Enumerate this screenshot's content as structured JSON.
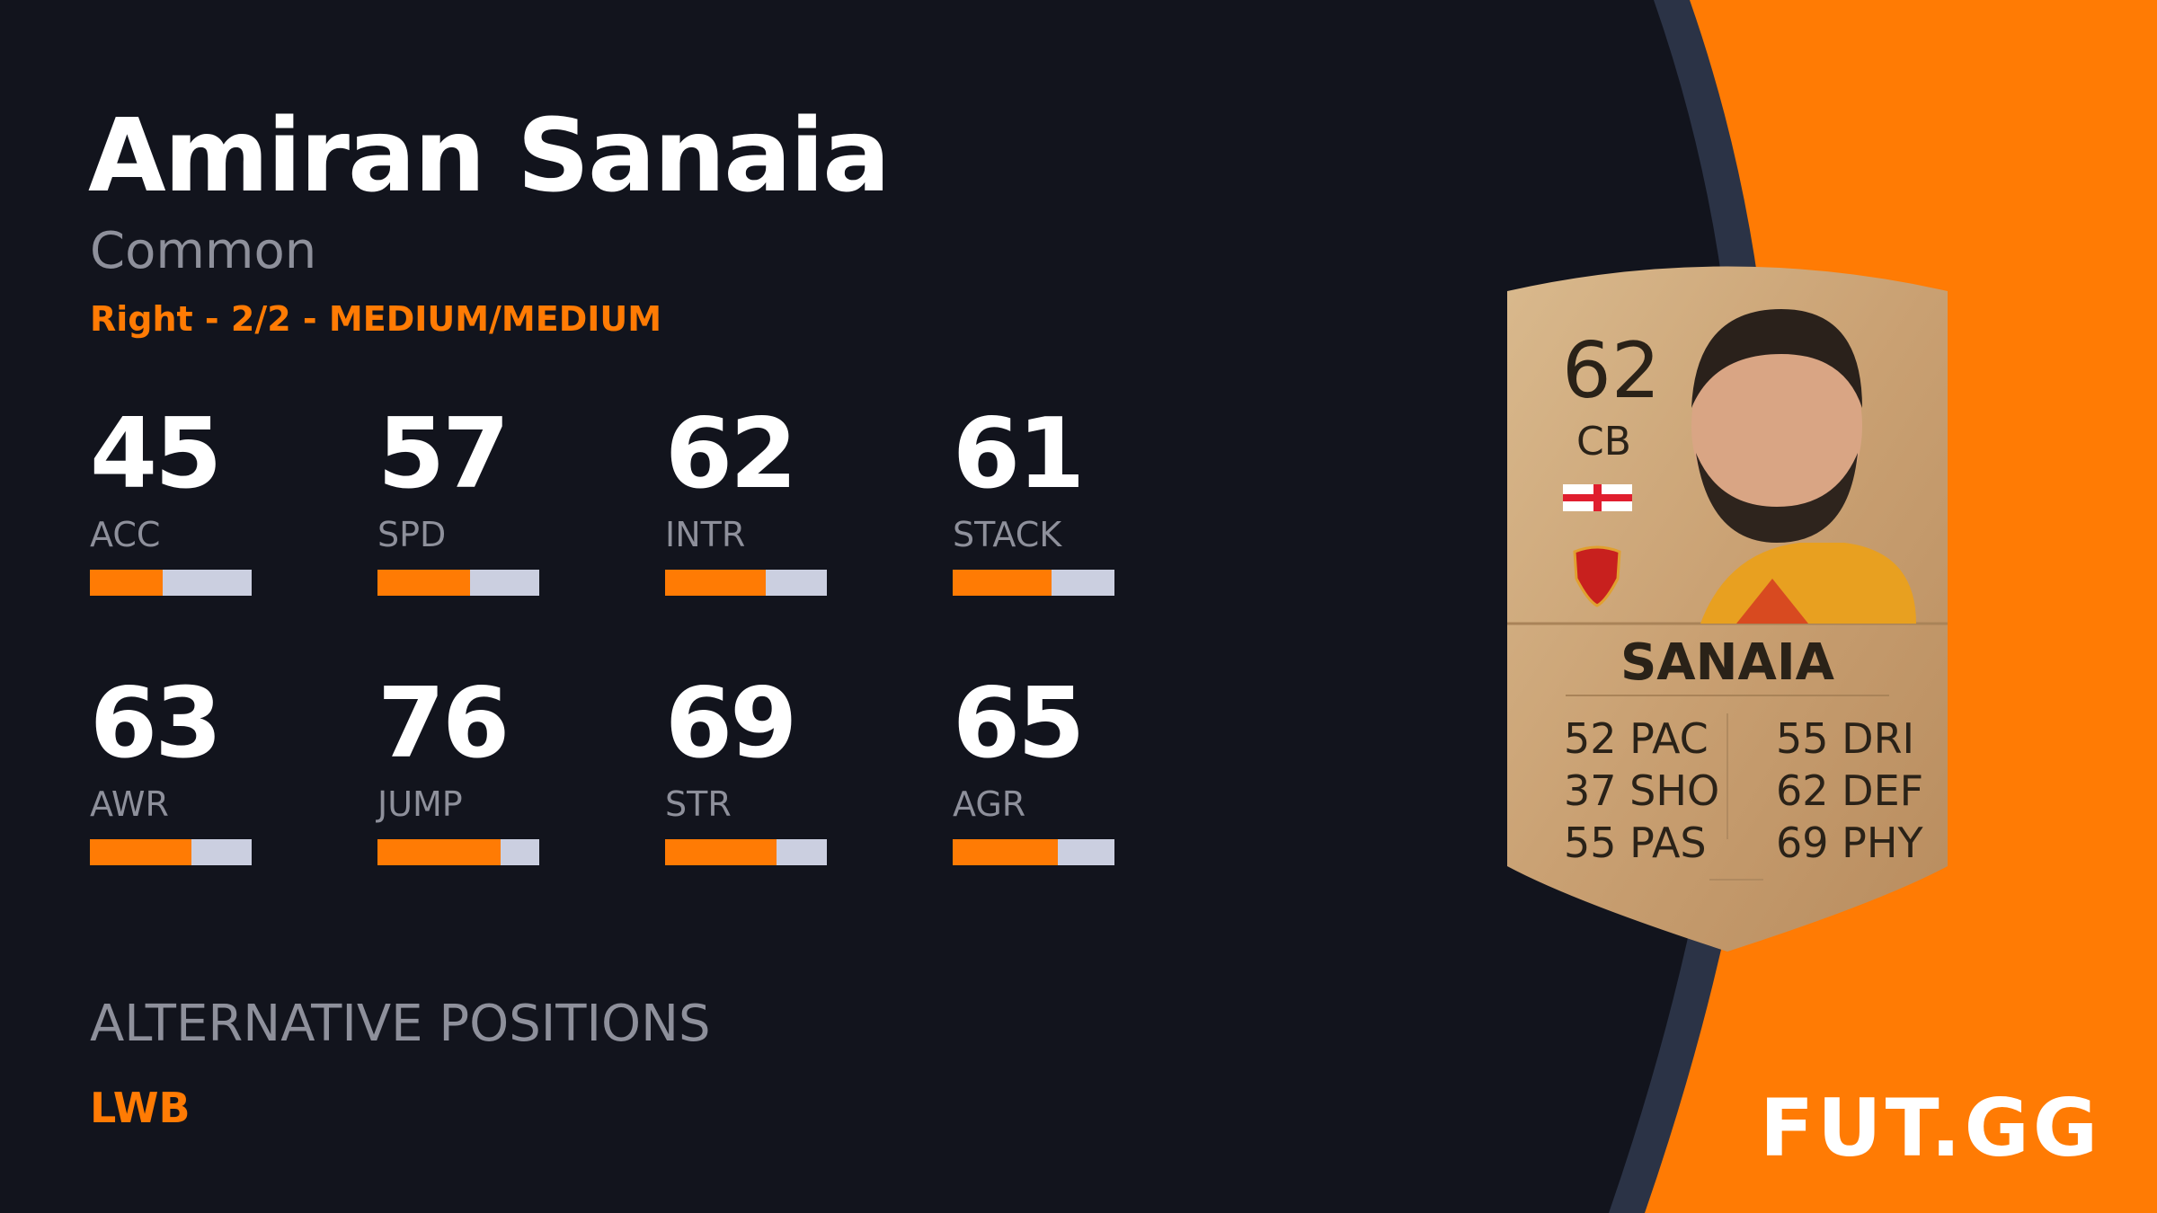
{
  "player": {
    "name": "Amiran Sanaia",
    "rarity": "Common",
    "meta": "Right - 2/2 - MEDIUM/MEDIUM"
  },
  "stats": [
    {
      "label": "ACC",
      "value": 45
    },
    {
      "label": "SPD",
      "value": 57
    },
    {
      "label": "INTR",
      "value": 62
    },
    {
      "label": "STACK",
      "value": 61
    },
    {
      "label": "AWR",
      "value": 63
    },
    {
      "label": "JUMP",
      "value": 76
    },
    {
      "label": "STR",
      "value": 69
    },
    {
      "label": "AGR",
      "value": 65
    }
  ],
  "alternative": {
    "heading": "ALTERNATIVE POSITIONS",
    "positions": "LWB"
  },
  "card": {
    "rating": "62",
    "position": "CB",
    "name": "SANAIA",
    "attrs": [
      {
        "v": "52",
        "l": "PAC"
      },
      {
        "v": "37",
        "l": "SHO"
      },
      {
        "v": "55",
        "l": "PAS"
      },
      {
        "v": "55",
        "l": "DRI"
      },
      {
        "v": "62",
        "l": "DEF"
      },
      {
        "v": "69",
        "l": "PHY"
      }
    ],
    "nation_icon": "georgia-flag",
    "club_icon": "club-crest"
  },
  "logo": "FUT.GG",
  "colors": {
    "accent": "#ff7b04",
    "background": "#12141d",
    "bar_track": "#cbcfe0",
    "band": "#2b3346"
  }
}
